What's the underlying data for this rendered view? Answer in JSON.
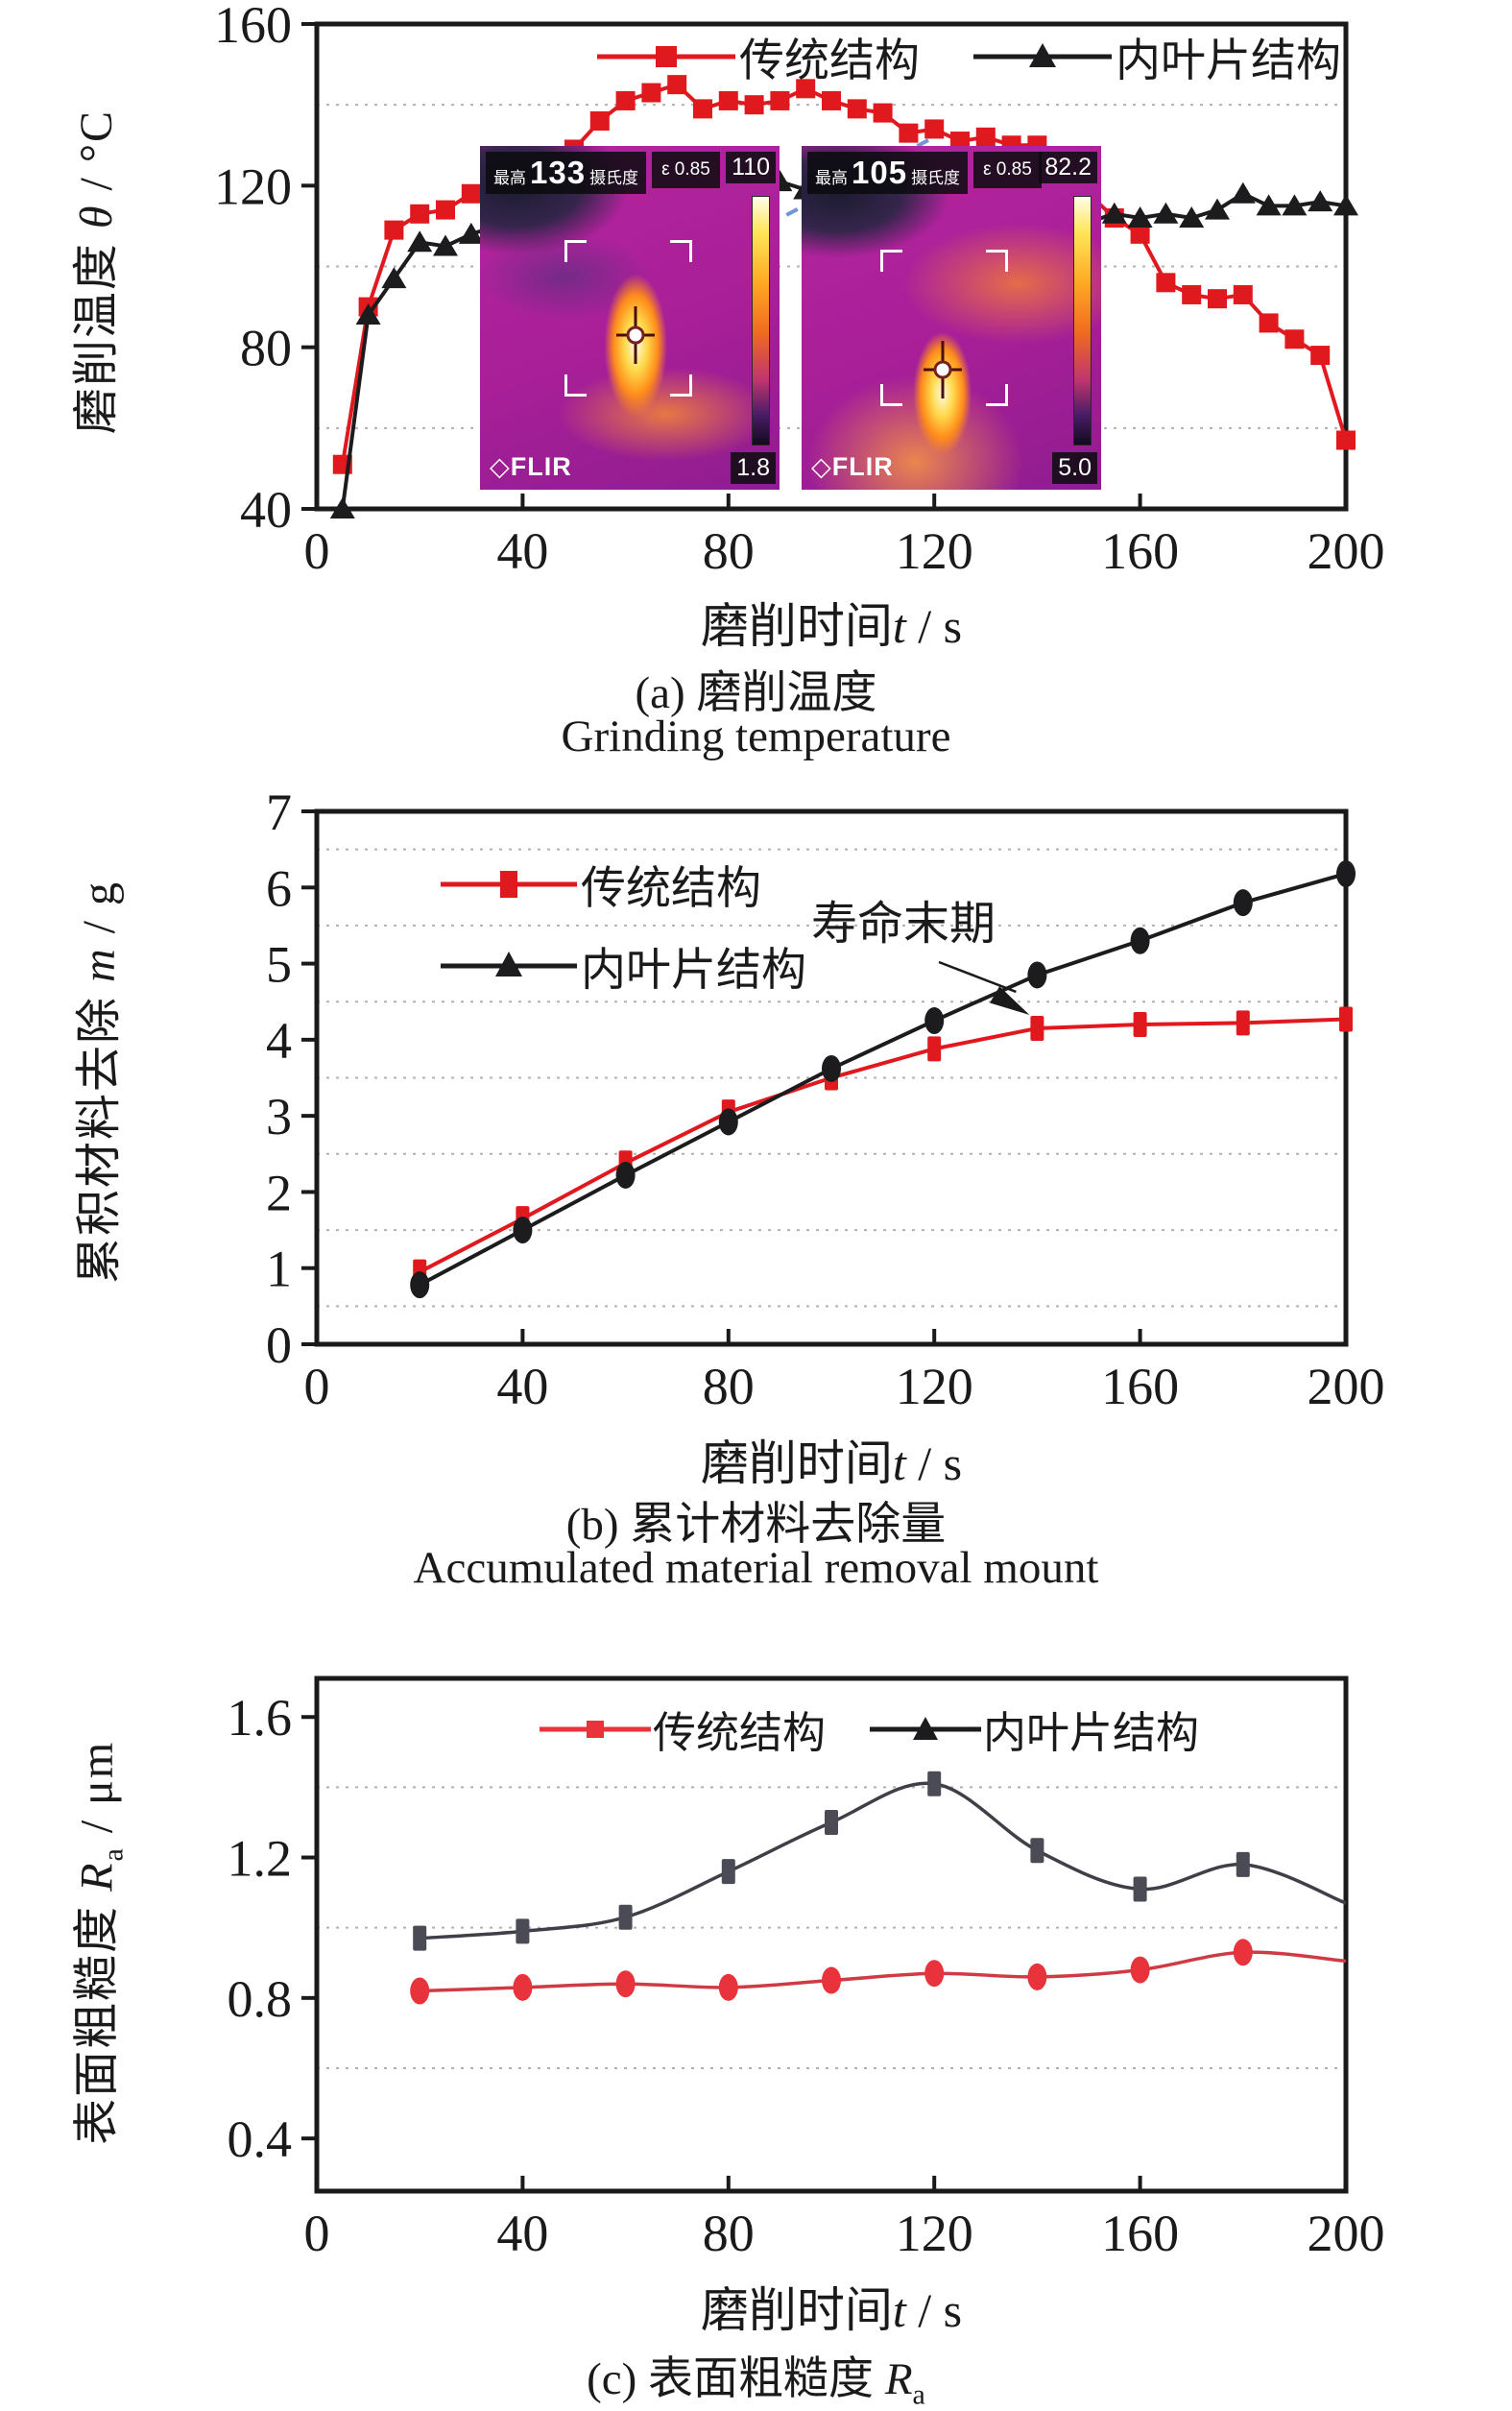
{
  "colors": {
    "red": "#e0191f",
    "black": "#1c1c1e",
    "c_red_line": "#cf3a44",
    "c_red_marker": "#e8323c",
    "c_black_line": "#3f3f48",
    "c_black_marker": "#4b4b55",
    "grid": "#b0b0b0",
    "arrow_blue": "#6f97d8"
  },
  "charts": [
    {
      "id": "a",
      "ylabel_prefix": "磨削温度 ",
      "ylabel_var": "θ",
      "ylabel_suffix": " / °C",
      "xlabel_prefix": "磨削时间",
      "xlabel_var": "t",
      "xlabel_suffix": " / s",
      "caption_cn": "(a) 磨削温度",
      "caption_en": "Grinding temperature",
      "legend": [
        {
          "label": "传统结构"
        },
        {
          "label": "内叶片结构"
        }
      ]
    },
    {
      "id": "b",
      "ylabel_prefix": "累积材料去除 ",
      "ylabel_var": "m",
      "ylabel_suffix": " / g",
      "xlabel_prefix": "磨削时间",
      "xlabel_var": "t",
      "xlabel_suffix": " / s",
      "caption_cn": "(b) 累计材料去除量",
      "caption_en": "Accumulated material removal mount",
      "annotation": "寿命末期",
      "legend": [
        {
          "label": "传统结构"
        },
        {
          "label": "内叶片结构"
        }
      ]
    },
    {
      "id": "c",
      "ylabel_prefix": "表面粗糙度 ",
      "ylabel_var": "R",
      "ylabel_sub": "a",
      "ylabel_suffix": " / μm",
      "xlabel_prefix": "磨削时间",
      "xlabel_var": "t",
      "xlabel_suffix": " / s",
      "caption_prefix": "(c) 表面粗糙度 ",
      "caption_var": "R",
      "caption_sub": "a",
      "legend": [
        {
          "label": "传统结构"
        },
        {
          "label": "内叶片结构"
        }
      ]
    }
  ],
  "thermal_images": [
    {
      "max_label": "最高",
      "max_value": "133",
      "unit": "摄氏度",
      "emissivity": "ε 0.85",
      "scale_max": "110",
      "scale_min": "1.8",
      "logo_glyph": "◇",
      "logo_text": "FLIR"
    },
    {
      "max_label": "最高",
      "max_value": "105",
      "unit": "摄氏度",
      "emissivity": "ε 0.85",
      "scale_max": "82.2",
      "scale_min": "5.0",
      "logo_glyph": "◇",
      "logo_text": "FLIR"
    }
  ],
  "chart_data": [
    {
      "type": "line",
      "title": "磨削温度 Grinding temperature",
      "xlabel": "磨削时间 t / s",
      "ylabel": "磨削温度 θ / °C",
      "xlim": [
        0,
        200
      ],
      "ylim": [
        40,
        160
      ],
      "xticks": [
        0,
        40,
        80,
        120,
        160,
        200
      ],
      "yticks": [
        40,
        80,
        120,
        160
      ],
      "gridlines": [
        60,
        100,
        140
      ],
      "grid": "dotted",
      "legend_position": "top-right-inside",
      "x": [
        5,
        10,
        15,
        20,
        25,
        30,
        35,
        40,
        45,
        50,
        55,
        60,
        65,
        70,
        75,
        80,
        85,
        90,
        95,
        100,
        105,
        110,
        115,
        120,
        125,
        130,
        135,
        140,
        145,
        150,
        155,
        160,
        165,
        170,
        175,
        180,
        185,
        190,
        195,
        200
      ],
      "series": [
        {
          "name": "传统结构",
          "color": "#e0191f",
          "marker": "square",
          "values": [
            51,
            90,
            109,
            113,
            114,
            118,
            121,
            123,
            125,
            129,
            136,
            141,
            143,
            145,
            139,
            141,
            140,
            141,
            144,
            141,
            139,
            138,
            133,
            134,
            131,
            132,
            130,
            130,
            123,
            118,
            112,
            108,
            96,
            93,
            92,
            93,
            86,
            82,
            78,
            57
          ]
        },
        {
          "name": "内叶片结构",
          "color": "#1c1c1e",
          "marker": "triangle",
          "values": [
            40,
            88,
            97,
            106,
            105,
            108,
            110,
            116,
            117,
            118,
            116,
            118,
            115,
            117,
            119,
            122,
            121,
            121,
            119,
            117,
            113,
            117,
            113,
            110,
            108,
            112,
            114,
            110,
            107,
            111,
            113,
            112,
            113,
            112,
            114,
            118,
            115,
            115,
            116,
            115
          ]
        }
      ]
    },
    {
      "type": "line",
      "title": "累计材料去除量 Accumulated material removal mount",
      "xlabel": "磨削时间 t / s",
      "ylabel": "累积材料去除 m / g",
      "xlim": [
        0,
        200
      ],
      "ylim": [
        0,
        7
      ],
      "xticks": [
        0,
        40,
        80,
        120,
        160,
        200
      ],
      "yticks": [
        0,
        1,
        2,
        3,
        4,
        5,
        6,
        7
      ],
      "gridlines": [
        0.5,
        1.5,
        2.5,
        3.5,
        4.5,
        5.5,
        6.5
      ],
      "grid": "dotted",
      "legend_position": "top-left-inside",
      "annotation": {
        "text": "寿命末期",
        "target_x": 140,
        "target_y": 4.15
      },
      "x": [
        20,
        40,
        60,
        80,
        100,
        120,
        140,
        160,
        180,
        200
      ],
      "series": [
        {
          "name": "传统结构",
          "color": "#e0191f",
          "marker": "vrect",
          "values": [
            0.95,
            1.65,
            2.38,
            3.05,
            3.5,
            3.88,
            4.15,
            4.2,
            4.22,
            4.27
          ]
        },
        {
          "name": "内叶片结构",
          "color": "#1c1c1e",
          "marker": "ellipse",
          "values": [
            0.78,
            1.5,
            2.22,
            2.92,
            3.62,
            4.25,
            4.85,
            5.3,
            5.8,
            6.18
          ]
        }
      ]
    },
    {
      "type": "line",
      "title": "表面粗糙度 Ra",
      "curve": "smooth",
      "xlabel": "磨削时间 t / s",
      "ylabel": "表面粗糙度 Ra / μm",
      "xlim": [
        0,
        200
      ],
      "ylim": [
        0.25,
        1.71
      ],
      "xticks": [
        0,
        40,
        80,
        120,
        160,
        200
      ],
      "yticks": [
        0.4,
        0.8,
        1.2,
        1.6
      ],
      "gridlines": [
        0.6,
        1.0,
        1.4
      ],
      "grid": "dotted",
      "legend_position": "top-center-inside",
      "x": [
        20,
        40,
        60,
        80,
        100,
        120,
        140,
        160,
        180
      ],
      "series": [
        {
          "name": "传统结构",
          "color": "#cf3a44",
          "marker_color": "#e8323c",
          "marker": "ellipse",
          "values": [
            0.82,
            0.83,
            0.84,
            0.83,
            0.85,
            0.87,
            0.86,
            0.88,
            0.93
          ],
          "trend_end": {
            "x": 200,
            "y": 0.905
          }
        },
        {
          "name": "内叶片结构",
          "color": "#3f3f48",
          "marker_color": "#4b4b55",
          "marker": "vrect",
          "values": [
            0.97,
            0.99,
            1.03,
            1.16,
            1.3,
            1.41,
            1.22,
            1.11,
            1.18
          ],
          "trend_end": {
            "x": 200,
            "y": 1.07
          }
        }
      ]
    }
  ]
}
